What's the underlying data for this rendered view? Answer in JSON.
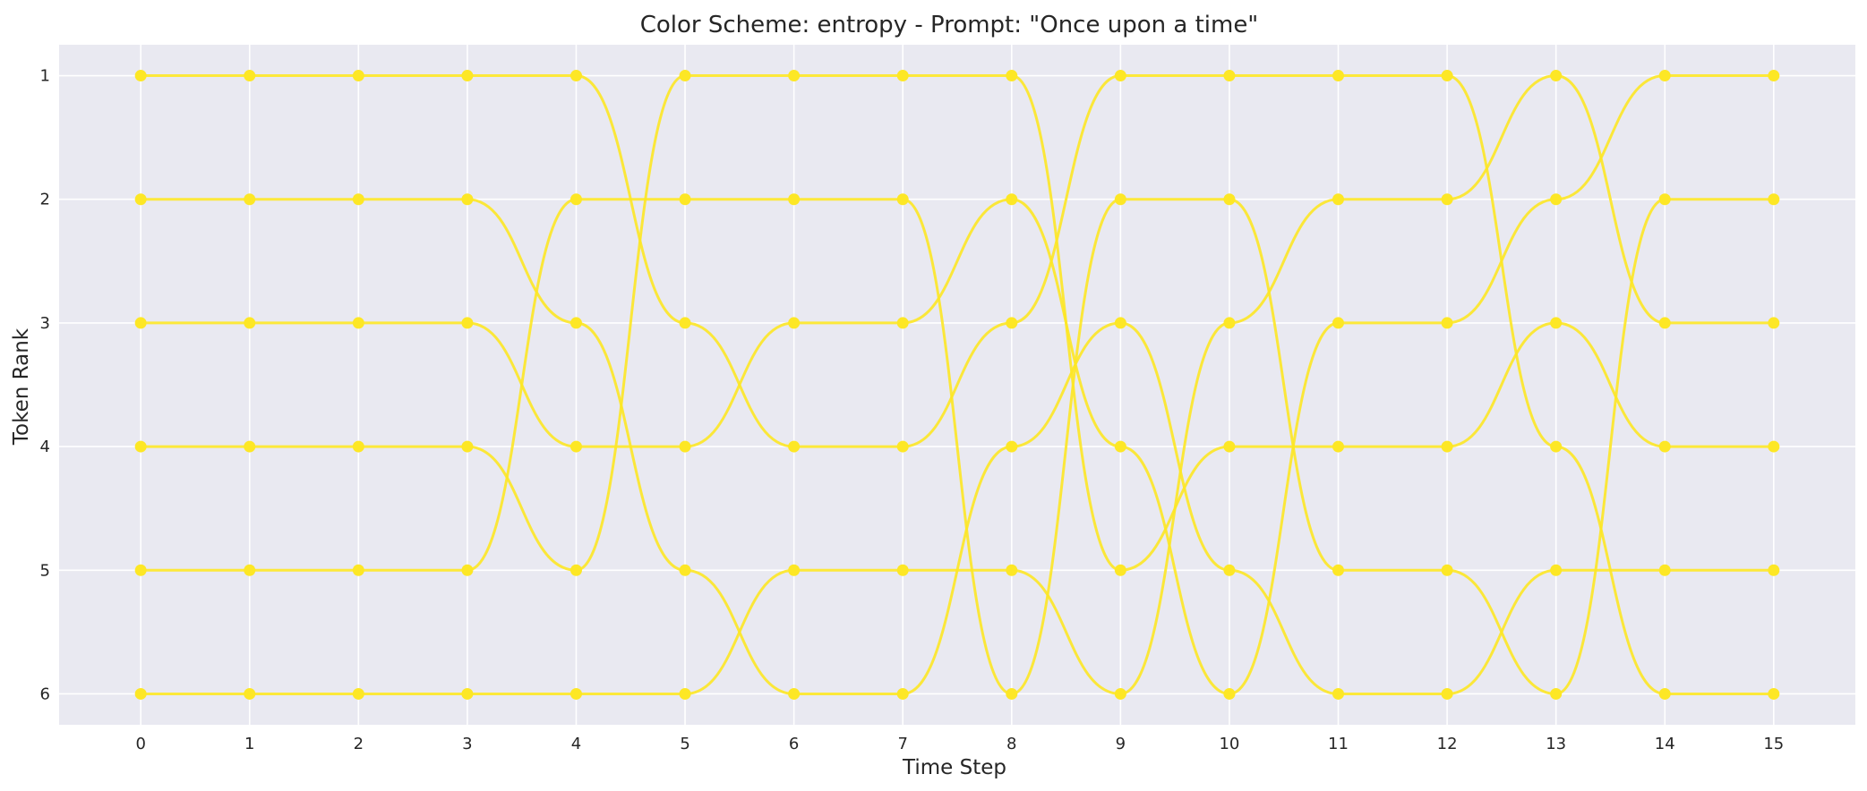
{
  "chart_data": {
    "type": "line",
    "title": "Color Scheme: entropy - Prompt: \"Once upon a time\"",
    "xlabel": "Time Step",
    "ylabel": "Token Rank",
    "x": [
      0,
      1,
      2,
      3,
      4,
      5,
      6,
      7,
      8,
      9,
      10,
      11,
      12,
      13,
      14,
      15
    ],
    "y_ticks": [
      1,
      2,
      3,
      4,
      5,
      6
    ],
    "xlim": [
      -0.75,
      15.75
    ],
    "ylim": [
      6.25,
      0.75
    ],
    "y_inverted": true,
    "grid": true,
    "smooth_curves": true,
    "colors": {
      "plot_background": "#e9e9f1",
      "grid": "#ffffff",
      "line": "#fde725",
      "marker": "#fde725"
    },
    "series": [
      {
        "values": [
          1,
          1,
          1,
          1,
          1,
          3,
          4,
          4,
          3,
          1,
          1,
          1,
          1,
          4,
          6,
          6
        ]
      },
      {
        "values": [
          2,
          2,
          2,
          2,
          3,
          5,
          6,
          6,
          4,
          3,
          5,
          6,
          6,
          5,
          5,
          5
        ]
      },
      {
        "values": [
          3,
          3,
          3,
          3,
          4,
          4,
          3,
          3,
          2,
          4,
          6,
          3,
          3,
          2,
          1,
          1
        ]
      },
      {
        "values": [
          4,
          4,
          4,
          4,
          5,
          1,
          1,
          1,
          1,
          5,
          4,
          4,
          4,
          3,
          4,
          4
        ]
      },
      {
        "values": [
          5,
          5,
          5,
          5,
          2,
          2,
          2,
          2,
          6,
          2,
          2,
          5,
          5,
          6,
          2,
          2
        ]
      },
      {
        "values": [
          6,
          6,
          6,
          6,
          6,
          6,
          5,
          5,
          5,
          6,
          3,
          2,
          2,
          1,
          3,
          3
        ]
      }
    ]
  }
}
